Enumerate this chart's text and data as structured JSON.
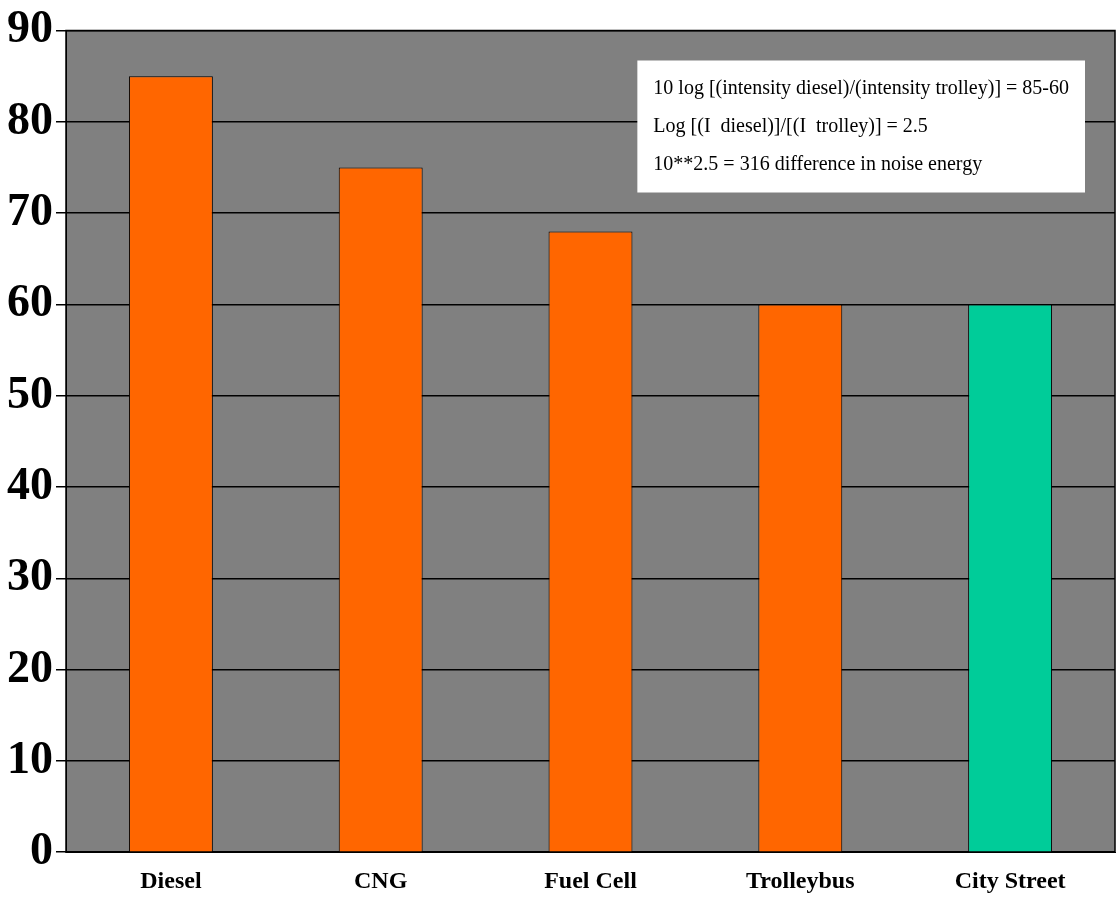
{
  "chart_data": {
    "type": "bar",
    "categories": [
      "Diesel",
      "CNG",
      "Fuel Cell",
      "Trolleybus",
      "City Street"
    ],
    "values": [
      85,
      75,
      68,
      60,
      60
    ],
    "colors": [
      "#ff6600",
      "#ff6600",
      "#ff6600",
      "#ff6600",
      "#00cc99"
    ],
    "ylim": [
      0,
      90
    ],
    "yticks": [
      0,
      10,
      20,
      30,
      40,
      50,
      60,
      70,
      80,
      90
    ],
    "grid": "y",
    "legend": false,
    "annotations": [
      "10 log [(intensity diesel)/(intensity trolley)] = 85-60",
      "Log [(I  diesel)]/[(I  trolley)] = 2.5",
      "10**2.5 = 316 difference in noise energy"
    ]
  }
}
